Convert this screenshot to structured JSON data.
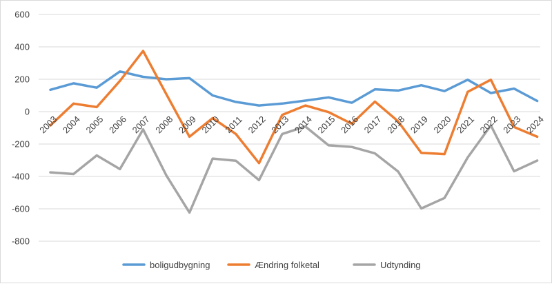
{
  "chart_data": {
    "type": "line",
    "title": "",
    "xlabel": "",
    "ylabel": "",
    "categories": [
      "2003",
      "2004",
      "2005",
      "2006",
      "2007",
      "2008",
      "2009",
      "2010",
      "2011",
      "2012",
      "2013",
      "2014",
      "2015",
      "2016",
      "2017",
      "2018",
      "2019",
      "2020",
      "2021",
      "2022",
      "2023",
      "2024"
    ],
    "ylim": [
      -800,
      600
    ],
    "yticks": [
      600,
      400,
      200,
      0,
      -200,
      -400,
      -600,
      -800
    ],
    "grid": true,
    "legend_position": "bottom",
    "series": [
      {
        "name": "boligudbygning",
        "color": "#5B9BD5",
        "values": [
          135,
          175,
          148,
          248,
          215,
          200,
          207,
          100,
          60,
          38,
          50,
          68,
          88,
          55,
          138,
          130,
          163,
          127,
          197,
          115,
          142,
          66
        ]
      },
      {
        "name": "Ændring folketal",
        "color": "#ED7D31",
        "values": [
          -85,
          50,
          28,
          190,
          375,
          108,
          -155,
          -40,
          -138,
          -318,
          -20,
          38,
          -3,
          -75,
          62,
          -60,
          -255,
          -262,
          122,
          197,
          -95,
          -155
        ]
      },
      {
        "name": "Udtynding",
        "color": "#A5A5A5",
        "values": [
          -375,
          -385,
          -270,
          -355,
          -110,
          -393,
          -623,
          -290,
          -303,
          -423,
          -138,
          -92,
          -208,
          -218,
          -258,
          -370,
          -598,
          -533,
          -283,
          -85,
          -368,
          -302
        ]
      }
    ]
  }
}
